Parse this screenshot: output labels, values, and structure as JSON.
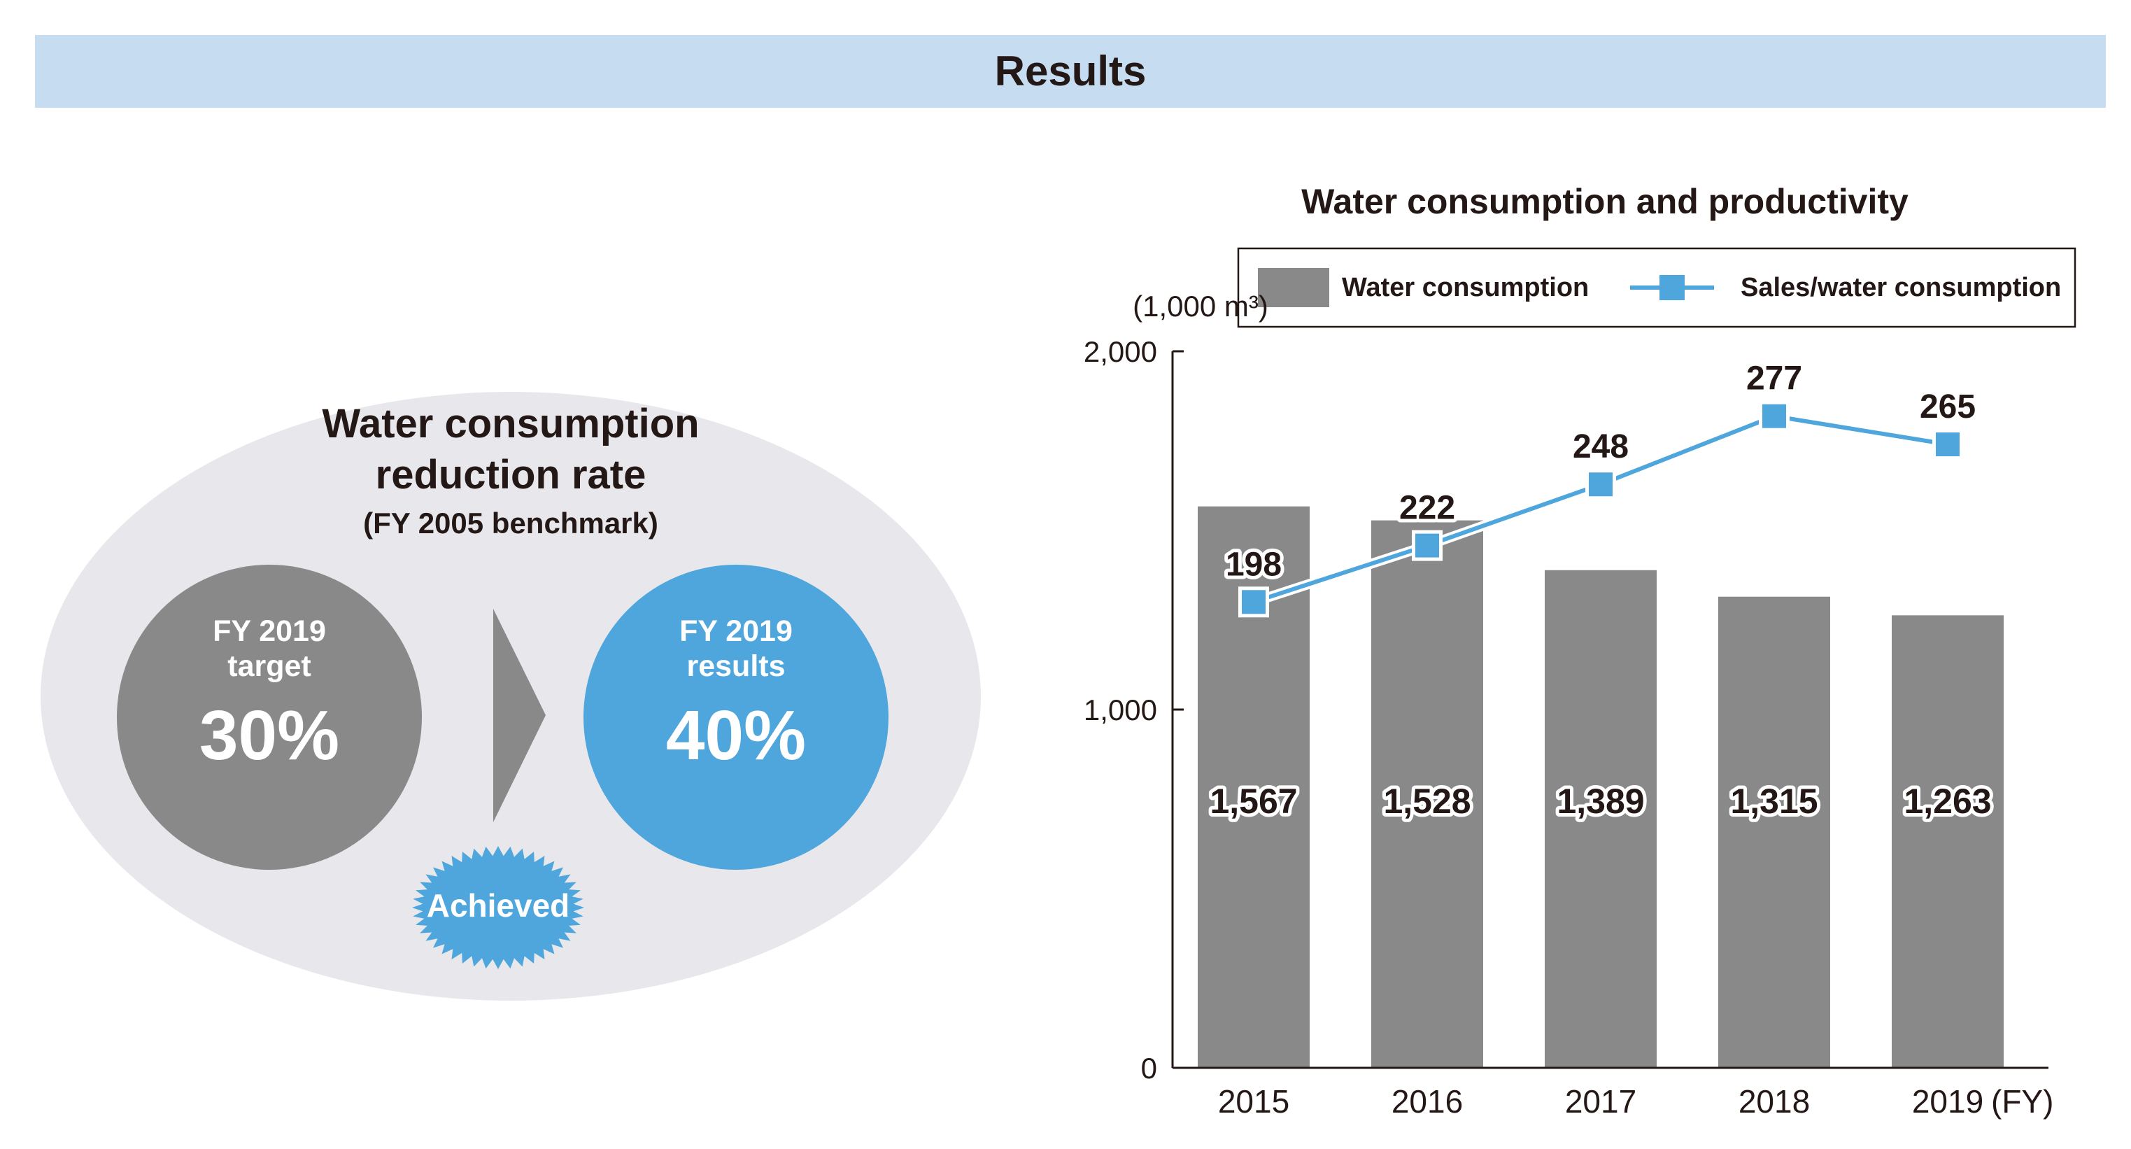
{
  "header": {
    "title": "Results"
  },
  "infographic": {
    "title_line1": "Water consumption",
    "title_line2": "reduction rate",
    "benchmark": "(FY 2005 benchmark)",
    "target": {
      "line1": "FY 2019",
      "line2": "target",
      "value": "30%"
    },
    "results": {
      "line1": "FY 2019",
      "line2": "results",
      "value": "40%"
    },
    "badge": "Achieved",
    "colors": {
      "ellipse": "#e8e8ec",
      "target_circle": "#898989",
      "results_circle": "#4ea6dc",
      "badge": "#4ea6dc"
    }
  },
  "chart_data": {
    "type": "bar",
    "title": "Water consumption and productivity",
    "categories": [
      "2015",
      "2016",
      "2017",
      "2018",
      "2019"
    ],
    "x_unit": "(FY)",
    "y_unit": "(1,000 m³)",
    "ylim": [
      0,
      2000
    ],
    "yticks": [
      "0",
      "1,000",
      "2,000"
    ],
    "legend_position": "top",
    "series": [
      {
        "name": "Water consumption",
        "type": "bar",
        "values": [
          1567,
          1528,
          1389,
          1315,
          1263
        ],
        "labels": [
          "1,567",
          "1,528",
          "1,389",
          "1,315",
          "1,263"
        ],
        "color": "#898989"
      },
      {
        "name": "Sales/water consumption",
        "type": "line",
        "values": [
          198,
          222,
          248,
          277,
          265
        ],
        "labels": [
          "198",
          "222",
          "248",
          "277",
          "265"
        ],
        "color": "#4ea6dc"
      }
    ]
  }
}
